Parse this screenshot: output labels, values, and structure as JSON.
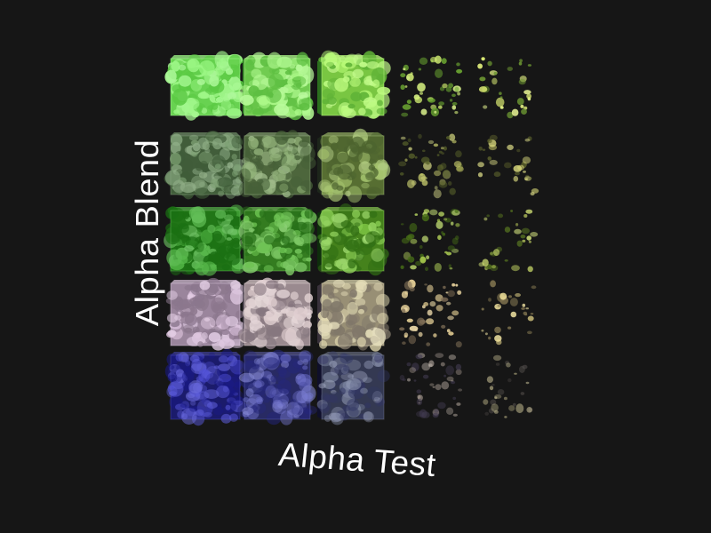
{
  "scene": {
    "background": "#161616",
    "labels": {
      "vertical_axis": "Alpha Blend",
      "horizontal_axis": "Alpha Test"
    },
    "grid": {
      "rows": 5,
      "columns": 5,
      "row_tints": [
        {
          "name": "light-green",
          "color": "#86f56a",
          "dark": "#3fae2a"
        },
        {
          "name": "grey-green",
          "color": "#5e8a52",
          "dark": "#2b3d27"
        },
        {
          "name": "green",
          "color": "#2ea81f",
          "dark": "#0f4a0b"
        },
        {
          "name": "lilac",
          "color": "#d4b6d6",
          "dark": "#5a4d5c"
        },
        {
          "name": "blue",
          "color": "#2a2ad0",
          "dark": "#0d0d55"
        }
      ],
      "column_tints": [
        "#ffffff",
        "#eaff7a",
        "#e4ff3a",
        "#ffe23a",
        "#ffee55"
      ],
      "column_alpha_test_coverage": [
        1.0,
        0.92,
        0.6,
        0.3,
        0.12
      ],
      "row_alpha_blend_opacity": [
        0.95,
        0.8,
        0.85,
        0.9,
        0.6
      ]
    }
  }
}
